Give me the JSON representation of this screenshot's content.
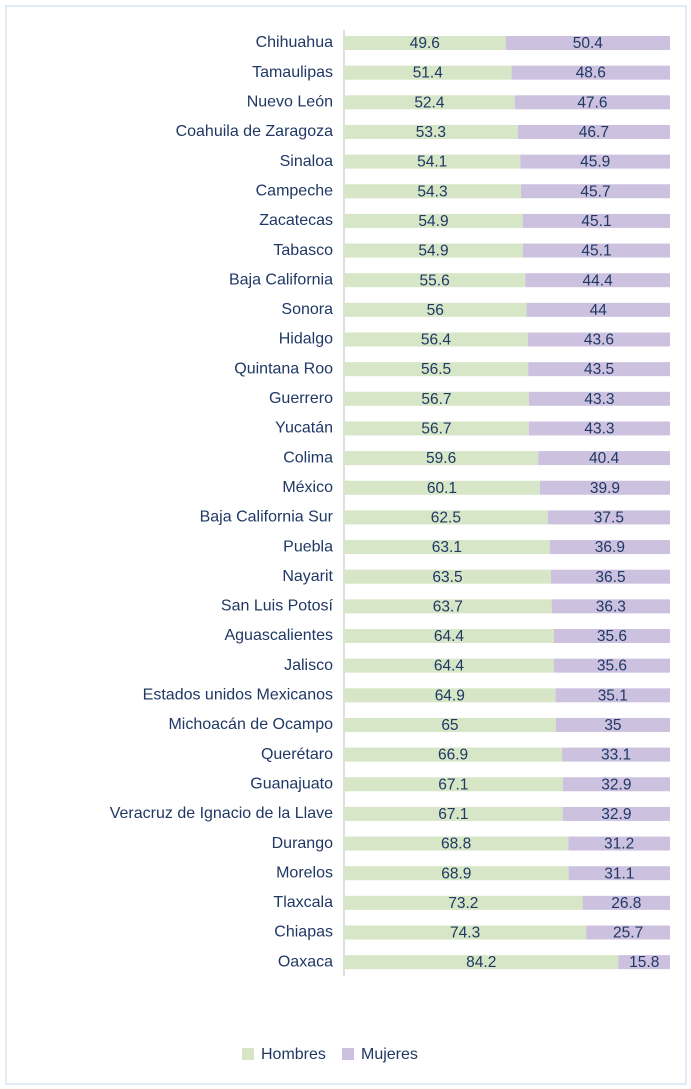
{
  "chart_data": {
    "type": "stacked_bar_horizontal",
    "categories": [
      "Chihuahua",
      "Tamaulipas",
      "Nuevo León",
      "Coahuila de Zaragoza",
      "Sinaloa",
      "Campeche",
      "Zacatecas",
      "Tabasco",
      "Baja California",
      "Sonora",
      "Hidalgo",
      "Quintana Roo",
      "Guerrero",
      "Yucatán",
      "Colima",
      "México",
      "Baja California Sur",
      "Puebla",
      "Nayarit",
      "San Luis Potosí",
      "Aguascalientes",
      "Jalisco",
      "Estados unidos Mexicanos",
      "Michoacán de Ocampo",
      "Querétaro",
      "Guanajuato",
      "Veracruz de Ignacio de la Llave",
      "Durango",
      "Morelos",
      "Tlaxcala",
      "Chiapas",
      "Oaxaca"
    ],
    "series": [
      {
        "name": "Hombres",
        "color": "#d6e6c6",
        "values": [
          49.6,
          51.4,
          52.4,
          53.3,
          54.1,
          54.3,
          54.9,
          54.9,
          55.6,
          56,
          56.4,
          56.5,
          56.7,
          56.7,
          59.6,
          60.1,
          62.5,
          63.1,
          63.5,
          63.7,
          64.4,
          64.4,
          64.9,
          65,
          66.9,
          67.1,
          67.1,
          68.8,
          68.9,
          73.2,
          74.3,
          84.2
        ]
      },
      {
        "name": "Mujeres",
        "color": "#ccc1df",
        "values": [
          50.4,
          48.6,
          47.6,
          46.7,
          45.9,
          45.7,
          45.1,
          45.1,
          44.4,
          44,
          43.6,
          43.5,
          43.3,
          43.3,
          40.4,
          39.9,
          37.5,
          36.9,
          36.5,
          36.3,
          35.6,
          35.6,
          35.1,
          35,
          33.1,
          32.9,
          32.9,
          31.2,
          31.1,
          26.8,
          25.7,
          15.8
        ]
      }
    ],
    "xlim": [
      0,
      100
    ]
  }
}
